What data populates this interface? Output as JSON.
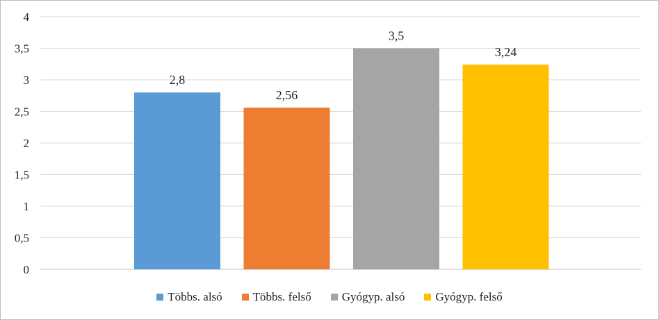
{
  "chart_data": {
    "type": "bar",
    "categories": [
      "Többs. alsó",
      "Többs. felső",
      "Gyógyp. alsó",
      "Gyógyp. felső"
    ],
    "values": [
      2.8,
      2.56,
      3.5,
      3.24
    ],
    "value_labels": [
      "2,8",
      "2,56",
      "3,5",
      "3,24"
    ],
    "colors": [
      "#5b9bd5",
      "#ed7d31",
      "#a5a5a5",
      "#ffc000"
    ],
    "ylim": [
      0,
      4
    ],
    "yticks": [
      0,
      0.5,
      1,
      1.5,
      2,
      2.5,
      3,
      3.5,
      4
    ],
    "ytick_labels": [
      "0",
      "0,5",
      "1",
      "1,5",
      "2",
      "2,5",
      "3",
      "3,5",
      "4"
    ],
    "grid": true,
    "legend_position": "bottom"
  }
}
